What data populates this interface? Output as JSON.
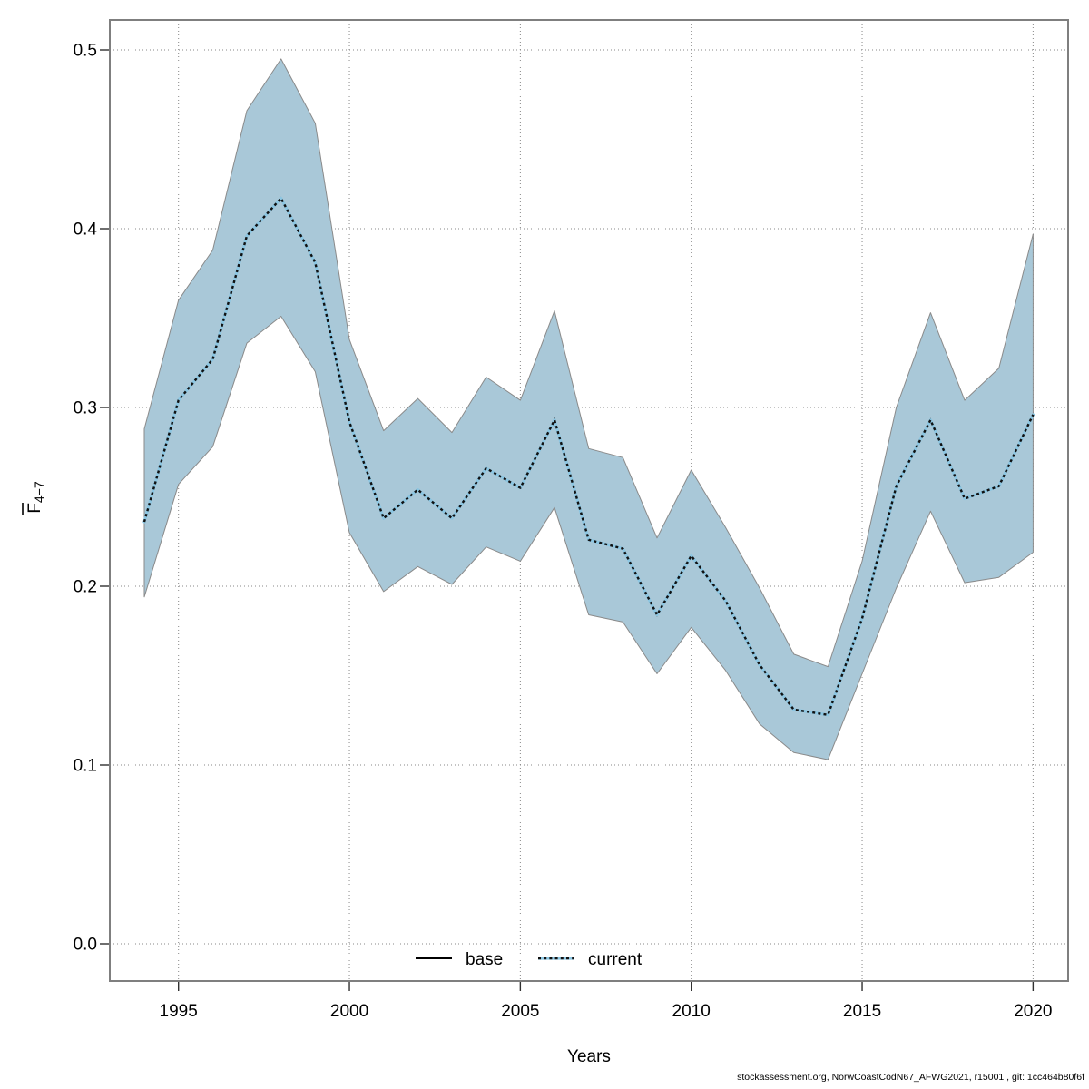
{
  "chart_data": {
    "type": "line",
    "title": "",
    "xlabel": "Years",
    "ylabel": {
      "letter": "F",
      "subscript": "4−7",
      "meaning": "mean fishing mortality ages 4-7, F-bar with overline"
    },
    "x": [
      1994,
      1995,
      1996,
      1997,
      1998,
      1999,
      2000,
      2001,
      2002,
      2003,
      2004,
      2005,
      2006,
      2007,
      2008,
      2009,
      2010,
      2011,
      2012,
      2013,
      2014,
      2015,
      2016,
      2017,
      2018,
      2019,
      2020
    ],
    "series": [
      {
        "name": "base",
        "style": "solid",
        "color": "#000000",
        "values": [
          0.236,
          0.304,
          0.327,
          0.396,
          0.417,
          0.381,
          0.292,
          0.238,
          0.254,
          0.238,
          0.266,
          0.255,
          0.293,
          0.226,
          0.221,
          0.184,
          0.217,
          0.192,
          0.156,
          0.131,
          0.128,
          0.182,
          0.256,
          0.293,
          0.249,
          0.256,
          0.296
        ]
      },
      {
        "name": "current",
        "style": "dotted",
        "dash_color": "#111111",
        "underlay_color": "#8cc6e2",
        "values": [
          0.236,
          0.304,
          0.327,
          0.396,
          0.417,
          0.381,
          0.292,
          0.238,
          0.254,
          0.238,
          0.266,
          0.255,
          0.293,
          0.226,
          0.221,
          0.184,
          0.217,
          0.192,
          0.156,
          0.131,
          0.128,
          0.182,
          0.256,
          0.293,
          0.249,
          0.256,
          0.296
        ]
      }
    ],
    "band": {
      "lower": [
        0.194,
        0.257,
        0.278,
        0.336,
        0.351,
        0.32,
        0.23,
        0.197,
        0.211,
        0.201,
        0.222,
        0.214,
        0.244,
        0.184,
        0.18,
        0.151,
        0.177,
        0.153,
        0.123,
        0.107,
        0.103,
        0.151,
        0.199,
        0.242,
        0.202,
        0.205,
        0.219
      ],
      "upper": [
        0.288,
        0.36,
        0.388,
        0.466,
        0.495,
        0.459,
        0.338,
        0.287,
        0.305,
        0.286,
        0.317,
        0.304,
        0.354,
        0.277,
        0.272,
        0.227,
        0.265,
        0.233,
        0.199,
        0.162,
        0.155,
        0.214,
        0.3,
        0.353,
        0.304,
        0.322,
        0.397
      ],
      "fill": "#a9c8d8",
      "edge": "#8a8a8a"
    },
    "ylim": [
      0.0,
      0.5
    ],
    "yticks": [
      "0.0",
      "0.1",
      "0.2",
      "0.3",
      "0.4",
      "0.5"
    ],
    "xticks": [
      "1995",
      "2000",
      "2005",
      "2010",
      "2015",
      "2020"
    ],
    "grid": "dotted",
    "grid_color": "#878787",
    "legend": {
      "position": "bottom-center-inside",
      "items": [
        {
          "label": "base"
        },
        {
          "label": "current"
        }
      ]
    },
    "footer": "stockassessment.org, NorwCoastCodN67_AFWG2021, r15001 , git: 1cc464b80f6f"
  }
}
